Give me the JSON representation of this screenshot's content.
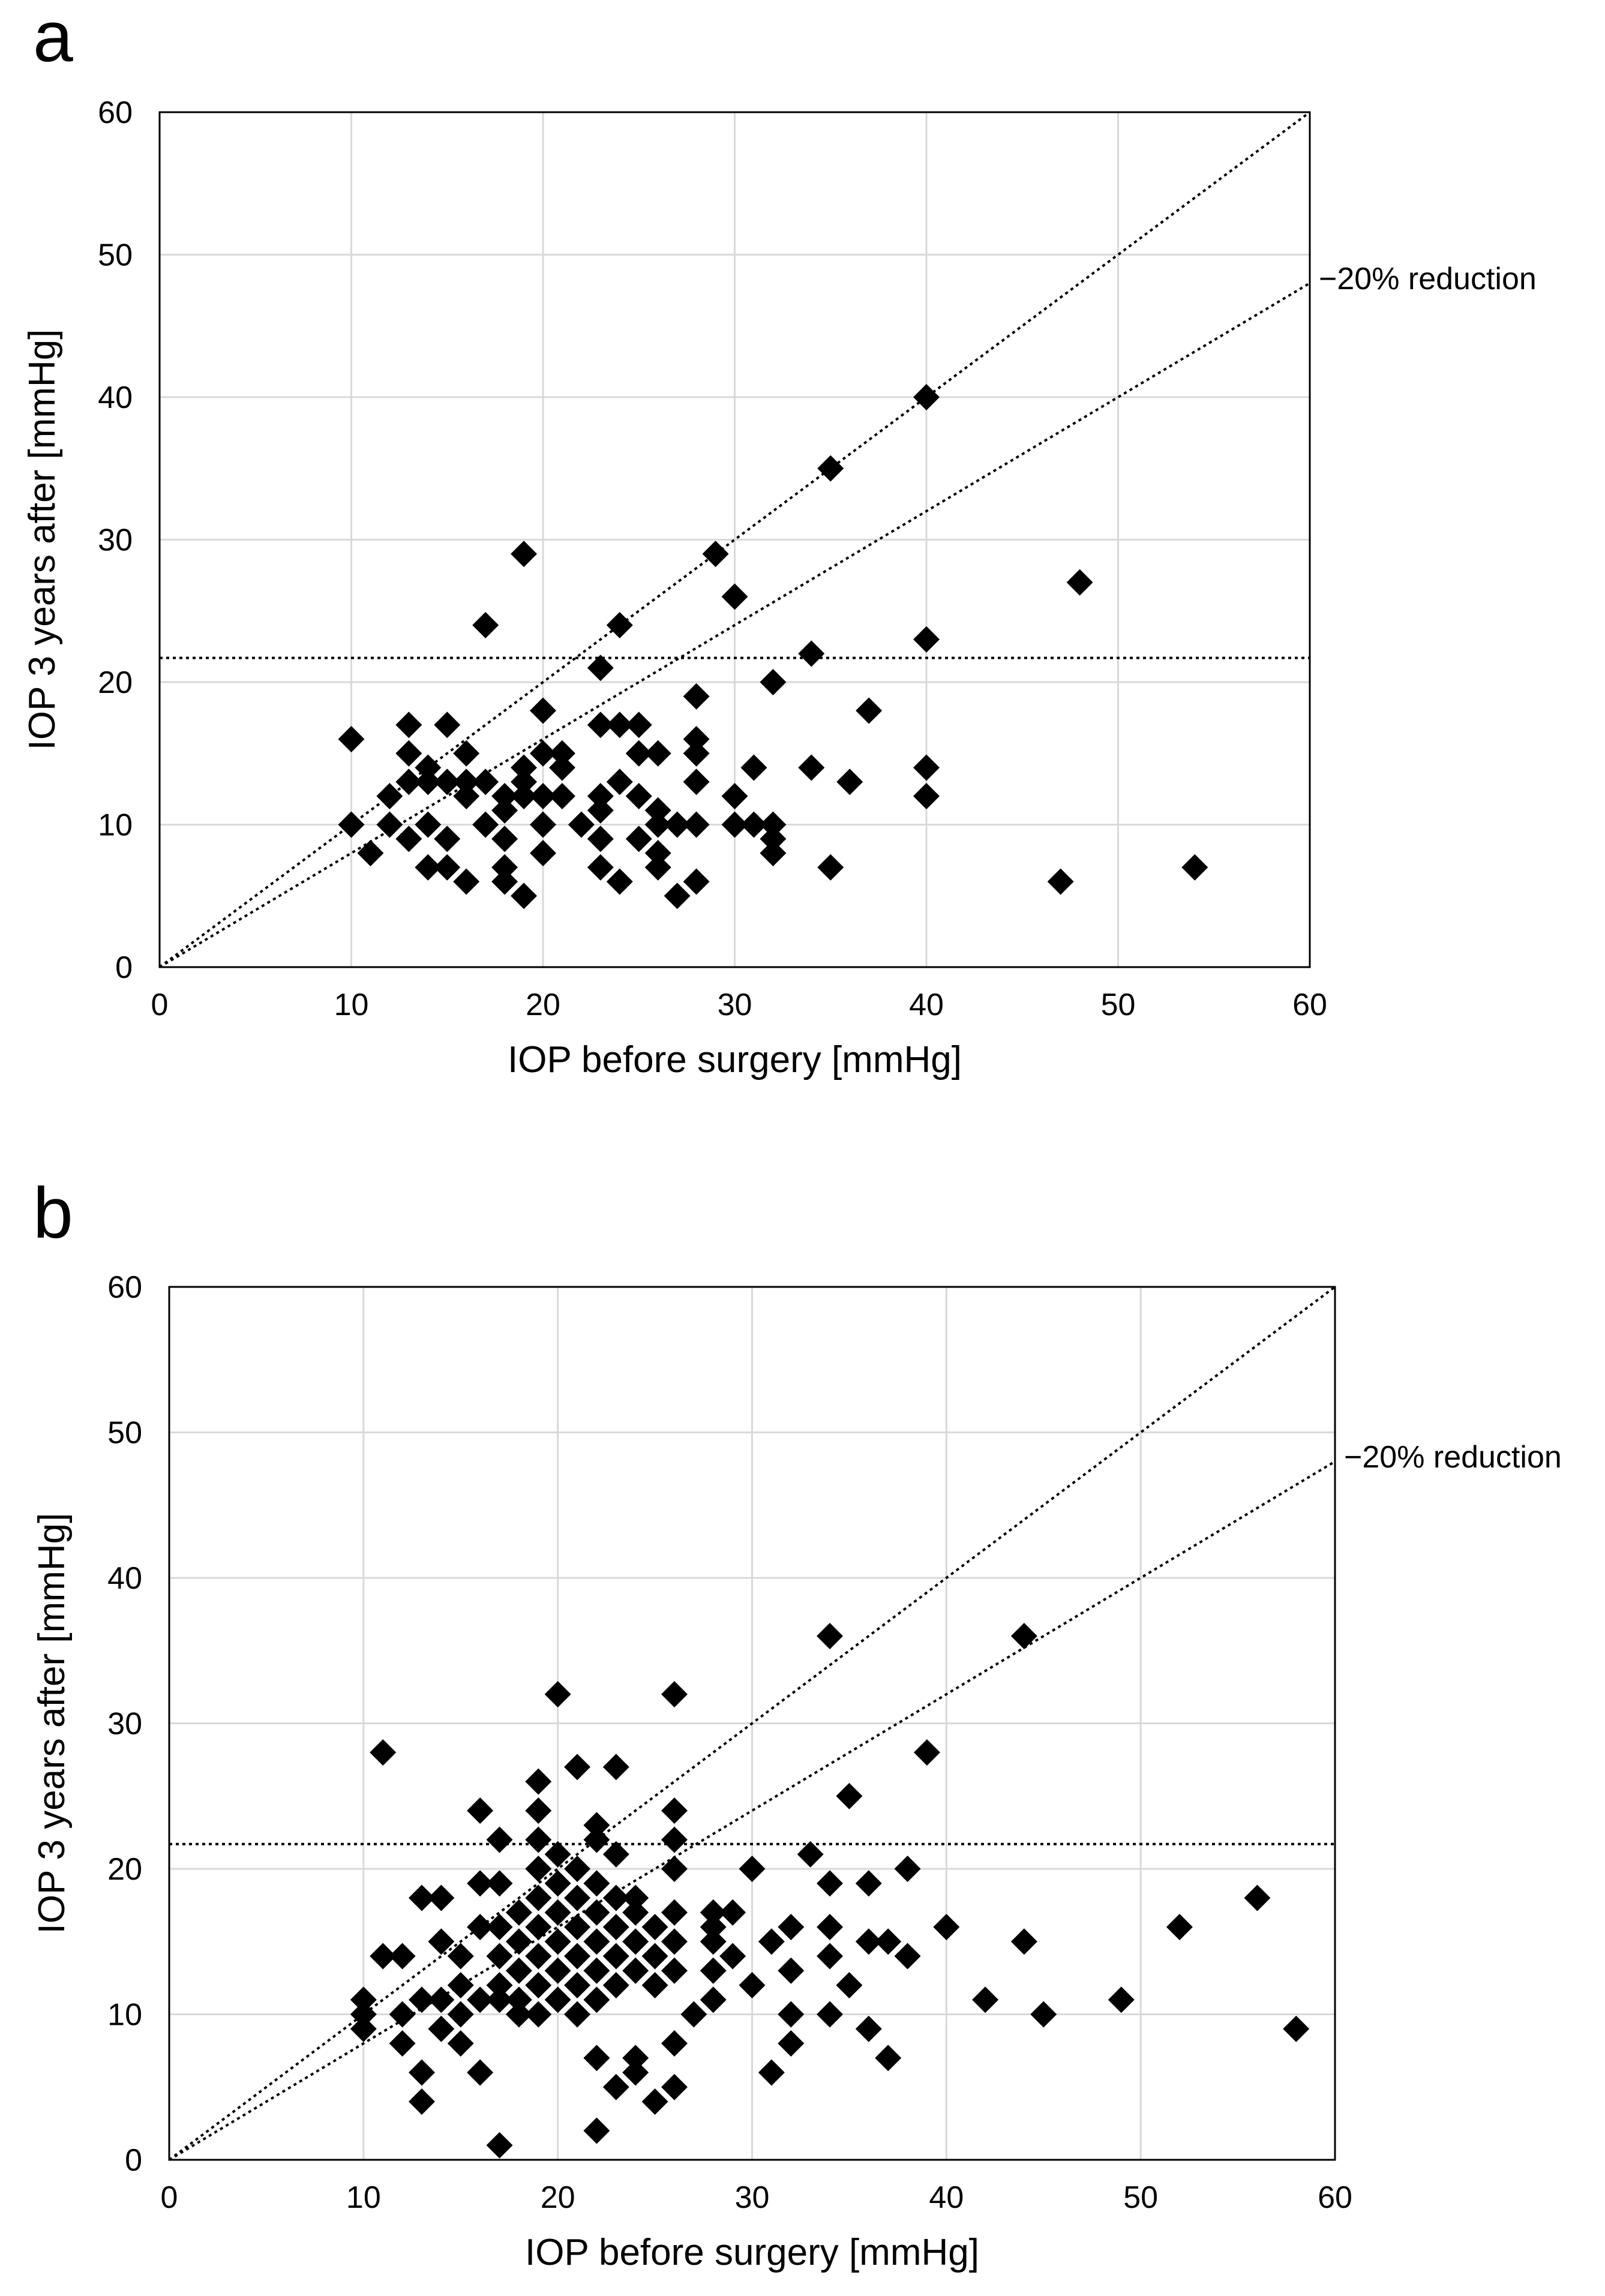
{
  "chart_data": [
    {
      "panel_label": "a",
      "type": "scatter",
      "xlabel": "IOP before surgery [mmHg]",
      "ylabel": "IOP 3 years after [mmHg]",
      "xlim": [
        0,
        60
      ],
      "ylim": [
        0,
        60
      ],
      "xticks": [
        "0",
        "10",
        "20",
        "30",
        "40",
        "50",
        "60"
      ],
      "yticks": [
        "0",
        "10",
        "20",
        "30",
        "40",
        "50",
        "60"
      ],
      "grid": true,
      "marker": "diamond",
      "reference_lines": [
        {
          "type": "identity",
          "slope": 1.0,
          "style": "dotted"
        },
        {
          "type": "reduction",
          "slope": 0.8,
          "label": "−20% reduction",
          "style": "dotted"
        },
        {
          "type": "horizontal",
          "y": 21.7,
          "style": "dotted"
        }
      ],
      "points": [
        [
          10,
          16
        ],
        [
          10,
          10
        ],
        [
          11,
          8
        ],
        [
          12,
          12
        ],
        [
          12,
          10
        ],
        [
          13,
          17
        ],
        [
          13,
          15
        ],
        [
          13,
          13
        ],
        [
          13,
          9
        ],
        [
          14,
          14
        ],
        [
          14,
          10
        ],
        [
          14,
          7
        ],
        [
          14,
          13
        ],
        [
          15,
          17
        ],
        [
          15,
          13
        ],
        [
          15,
          9
        ],
        [
          15,
          7
        ],
        [
          16,
          15
        ],
        [
          16,
          12
        ],
        [
          16,
          6
        ],
        [
          16,
          13
        ],
        [
          17,
          24
        ],
        [
          17,
          13
        ],
        [
          17,
          10
        ],
        [
          18,
          12
        ],
        [
          18,
          9
        ],
        [
          18,
          7
        ],
        [
          18,
          6
        ],
        [
          18,
          11
        ],
        [
          19,
          29
        ],
        [
          19,
          14
        ],
        [
          19,
          12
        ],
        [
          19,
          5
        ],
        [
          19,
          13
        ],
        [
          20,
          18
        ],
        [
          20,
          15
        ],
        [
          20,
          10
        ],
        [
          20,
          8
        ],
        [
          20,
          12
        ],
        [
          21,
          15
        ],
        [
          21,
          14
        ],
        [
          21,
          12
        ],
        [
          22,
          10
        ],
        [
          23,
          21
        ],
        [
          23,
          17
        ],
        [
          23,
          12
        ],
        [
          23,
          9
        ],
        [
          23,
          7
        ],
        [
          23,
          11
        ],
        [
          24,
          24
        ],
        [
          24,
          17
        ],
        [
          24,
          13
        ],
        [
          24,
          6
        ],
        [
          25,
          17
        ],
        [
          25,
          15
        ],
        [
          25,
          12
        ],
        [
          25,
          9
        ],
        [
          26,
          15
        ],
        [
          26,
          11
        ],
        [
          26,
          10
        ],
        [
          26,
          8
        ],
        [
          26,
          7
        ],
        [
          27,
          5
        ],
        [
          27,
          10
        ],
        [
          28,
          19
        ],
        [
          28,
          16
        ],
        [
          28,
          15
        ],
        [
          28,
          13
        ],
        [
          28,
          10
        ],
        [
          28,
          6
        ],
        [
          29,
          29
        ],
        [
          30,
          26
        ],
        [
          30,
          12
        ],
        [
          30,
          10
        ],
        [
          31,
          14
        ],
        [
          31,
          10
        ],
        [
          32,
          20
        ],
        [
          32,
          10
        ],
        [
          32,
          9
        ],
        [
          32,
          8
        ],
        [
          34,
          22
        ],
        [
          34,
          14
        ],
        [
          35,
          35
        ],
        [
          35,
          7
        ],
        [
          36,
          13
        ],
        [
          37,
          18
        ],
        [
          40,
          40
        ],
        [
          40,
          23
        ],
        [
          40,
          14
        ],
        [
          40,
          12
        ],
        [
          47,
          6
        ],
        [
          48,
          27
        ],
        [
          54,
          7
        ]
      ]
    },
    {
      "panel_label": "b",
      "type": "scatter",
      "xlabel": "IOP before surgery [mmHg]",
      "ylabel": "IOP 3 years after [mmHg]",
      "xlim": [
        0,
        60
      ],
      "ylim": [
        0,
        60
      ],
      "xticks": [
        "0",
        "10",
        "20",
        "30",
        "40",
        "50",
        "60"
      ],
      "yticks": [
        "0",
        "10",
        "20",
        "30",
        "40",
        "50",
        "60"
      ],
      "grid": true,
      "marker": "diamond",
      "reference_lines": [
        {
          "type": "identity",
          "slope": 1.0,
          "style": "dotted"
        },
        {
          "type": "reduction",
          "slope": 0.8,
          "label": "−20% reduction",
          "style": "dotted"
        },
        {
          "type": "horizontal",
          "y": 21.7,
          "style": "dotted"
        }
      ],
      "points": [
        [
          10,
          11
        ],
        [
          10,
          10
        ],
        [
          10,
          9
        ],
        [
          11,
          28
        ],
        [
          11,
          14
        ],
        [
          12,
          14
        ],
        [
          12,
          10
        ],
        [
          12,
          8
        ],
        [
          13,
          18
        ],
        [
          13,
          11
        ],
        [
          13,
          6
        ],
        [
          13,
          4
        ],
        [
          14,
          18
        ],
        [
          14,
          15
        ],
        [
          14,
          11
        ],
        [
          14,
          9
        ],
        [
          15,
          14
        ],
        [
          15,
          12
        ],
        [
          15,
          10
        ],
        [
          15,
          8
        ],
        [
          16,
          24
        ],
        [
          16,
          19
        ],
        [
          16,
          16
        ],
        [
          16,
          11
        ],
        [
          16,
          6
        ],
        [
          17,
          22
        ],
        [
          17,
          19
        ],
        [
          17,
          16
        ],
        [
          17,
          14
        ],
        [
          17,
          12
        ],
        [
          17,
          11
        ],
        [
          17,
          1
        ],
        [
          18,
          17
        ],
        [
          18,
          15
        ],
        [
          18,
          13
        ],
        [
          18,
          11
        ],
        [
          18,
          10
        ],
        [
          19,
          26
        ],
        [
          19,
          24
        ],
        [
          19,
          22
        ],
        [
          19,
          20
        ],
        [
          19,
          18
        ],
        [
          19,
          16
        ],
        [
          19,
          14
        ],
        [
          19,
          12
        ],
        [
          19,
          10
        ],
        [
          20,
          32
        ],
        [
          20,
          21
        ],
        [
          20,
          19
        ],
        [
          20,
          17
        ],
        [
          20,
          15
        ],
        [
          20,
          13
        ],
        [
          20,
          11
        ],
        [
          21,
          27
        ],
        [
          21,
          20
        ],
        [
          21,
          18
        ],
        [
          21,
          16
        ],
        [
          21,
          14
        ],
        [
          21,
          12
        ],
        [
          21,
          10
        ],
        [
          22,
          23
        ],
        [
          22,
          22
        ],
        [
          22,
          19
        ],
        [
          22,
          17
        ],
        [
          22,
          15
        ],
        [
          22,
          13
        ],
        [
          22,
          11
        ],
        [
          22,
          7
        ],
        [
          22,
          2
        ],
        [
          23,
          27
        ],
        [
          23,
          21
        ],
        [
          23,
          18
        ],
        [
          23,
          16
        ],
        [
          23,
          14
        ],
        [
          23,
          12
        ],
        [
          23,
          5
        ],
        [
          24,
          18
        ],
        [
          24,
          17
        ],
        [
          24,
          15
        ],
        [
          24,
          13
        ],
        [
          24,
          7
        ],
        [
          24,
          6
        ],
        [
          25,
          16
        ],
        [
          25,
          14
        ],
        [
          25,
          12
        ],
        [
          25,
          4
        ],
        [
          26,
          32
        ],
        [
          26,
          24
        ],
        [
          26,
          22
        ],
        [
          26,
          20
        ],
        [
          26,
          17
        ],
        [
          26,
          15
        ],
        [
          26,
          13
        ],
        [
          26,
          8
        ],
        [
          26,
          5
        ],
        [
          27,
          10
        ],
        [
          28,
          17
        ],
        [
          28,
          16
        ],
        [
          28,
          15
        ],
        [
          28,
          13
        ],
        [
          28,
          11
        ],
        [
          29,
          17
        ],
        [
          29,
          14
        ],
        [
          30,
          20
        ],
        [
          30,
          12
        ],
        [
          31,
          15
        ],
        [
          31,
          6
        ],
        [
          32,
          16
        ],
        [
          32,
          13
        ],
        [
          32,
          10
        ],
        [
          32,
          8
        ],
        [
          33,
          21
        ],
        [
          34,
          36
        ],
        [
          34,
          19
        ],
        [
          34,
          16
        ],
        [
          34,
          14
        ],
        [
          34,
          10
        ],
        [
          35,
          25
        ],
        [
          35,
          12
        ],
        [
          36,
          19
        ],
        [
          36,
          15
        ],
        [
          36,
          9
        ],
        [
          37,
          15
        ],
        [
          37,
          7
        ],
        [
          38,
          20
        ],
        [
          38,
          14
        ],
        [
          39,
          28
        ],
        [
          40,
          16
        ],
        [
          42,
          11
        ],
        [
          44,
          36
        ],
        [
          44,
          15
        ],
        [
          45,
          10
        ],
        [
          49,
          11
        ],
        [
          52,
          16
        ],
        [
          56,
          18
        ],
        [
          58,
          9
        ]
      ]
    }
  ]
}
